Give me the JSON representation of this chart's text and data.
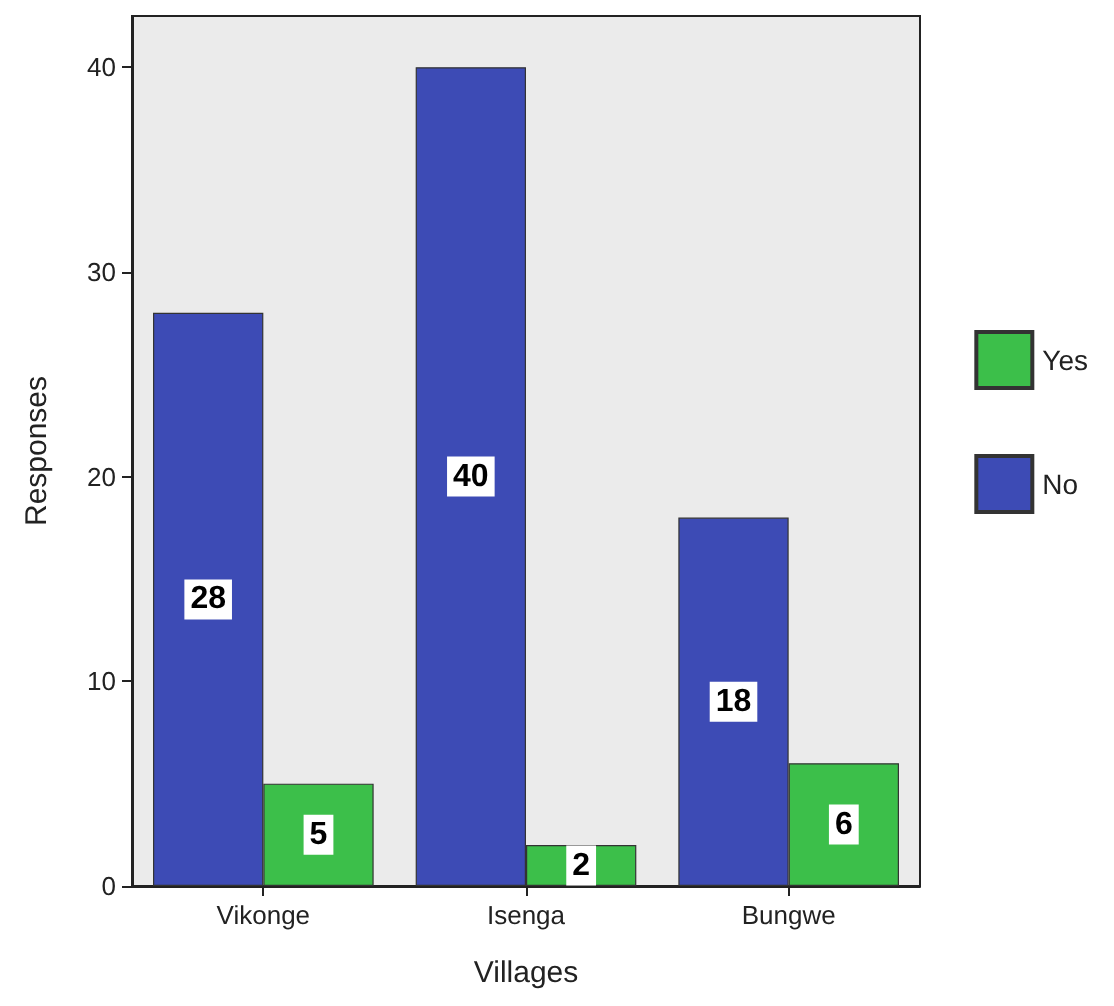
{
  "chart_data": {
    "type": "bar",
    "xlabel": "Villages",
    "ylabel": "Responses",
    "categories": [
      "Vikonge",
      "Isenga",
      "Bungwe"
    ],
    "series": [
      {
        "name": "No",
        "color": "#3d4bb5",
        "values": [
          28,
          40,
          18
        ]
      },
      {
        "name": "Yes",
        "color": "#3cbf4a",
        "values": [
          5,
          2,
          6
        ]
      }
    ],
    "ylim": [
      0,
      42.5
    ],
    "yticks": [
      0,
      10,
      20,
      30,
      40
    ],
    "grid": false,
    "legend": "right",
    "data_labels": true
  }
}
